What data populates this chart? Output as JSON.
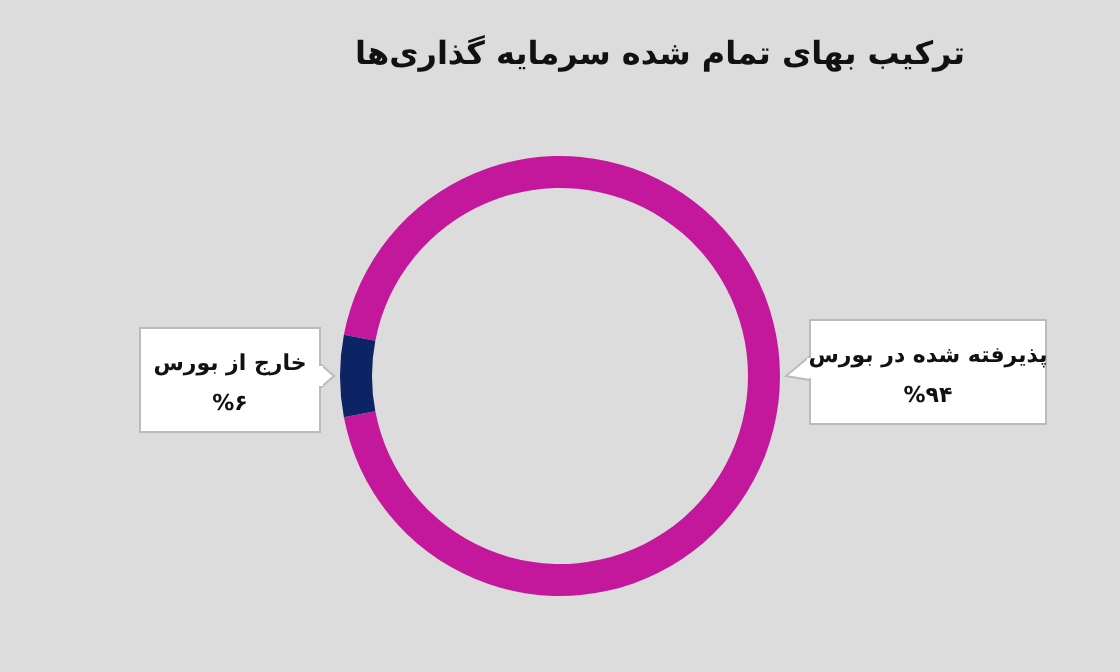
{
  "chart_data": {
    "type": "donut",
    "title": "ترکیب بهای تمام شده سرمایه گذاری‌ها",
    "categories": [
      "پذیرفته شده در بورس",
      "خارج از بورس"
    ],
    "values": [
      94,
      6
    ],
    "colors": [
      "#c4189c",
      "#0c2463"
    ],
    "value_labels": [
      "%۹۴",
      "%۶"
    ]
  }
}
